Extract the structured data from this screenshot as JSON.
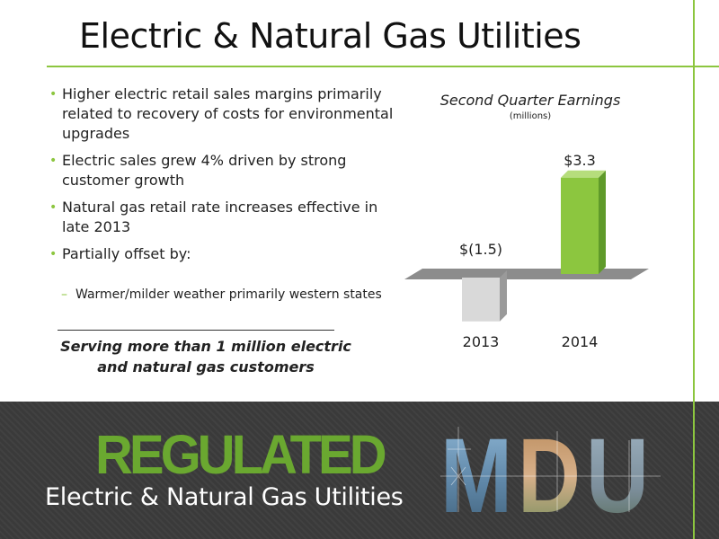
{
  "slide": {
    "title": "Electric & Natural Gas Utilities",
    "bullets": [
      "Higher electric retail sales margins primarily related to recovery of costs for environmental upgrades",
      "Electric sales grew 4% driven by strong customer growth",
      "Natural gas retail rate increases effective in late 2013",
      "Partially offset by:"
    ],
    "sub_bullets": [
      "Warmer/milder weather primarily western states"
    ],
    "serving_line1": "Serving more than 1 million electric",
    "serving_line2": "and natural gas customers"
  },
  "footer": {
    "word": "REGULATED",
    "subtitle": "Electric & Natural Gas Utilities",
    "logo_text": "MDU"
  },
  "colors": {
    "accent": "#8cc63f",
    "bar_2014": "#8cc63f",
    "bar_2013": "#d9d9d9",
    "footer_bg": "#3a3a3a",
    "regulated_text": "#6aa830"
  },
  "chart_data": {
    "type": "bar",
    "title": "Second Quarter Earnings",
    "subtitle": "(millions)",
    "categories": [
      "2013",
      "2014"
    ],
    "values": [
      -1.5,
      3.3
    ],
    "data_labels": [
      "$(1.5)",
      "$3.3"
    ],
    "ylim": [
      -2.5,
      4.5
    ],
    "grid": false,
    "legend": "none"
  }
}
